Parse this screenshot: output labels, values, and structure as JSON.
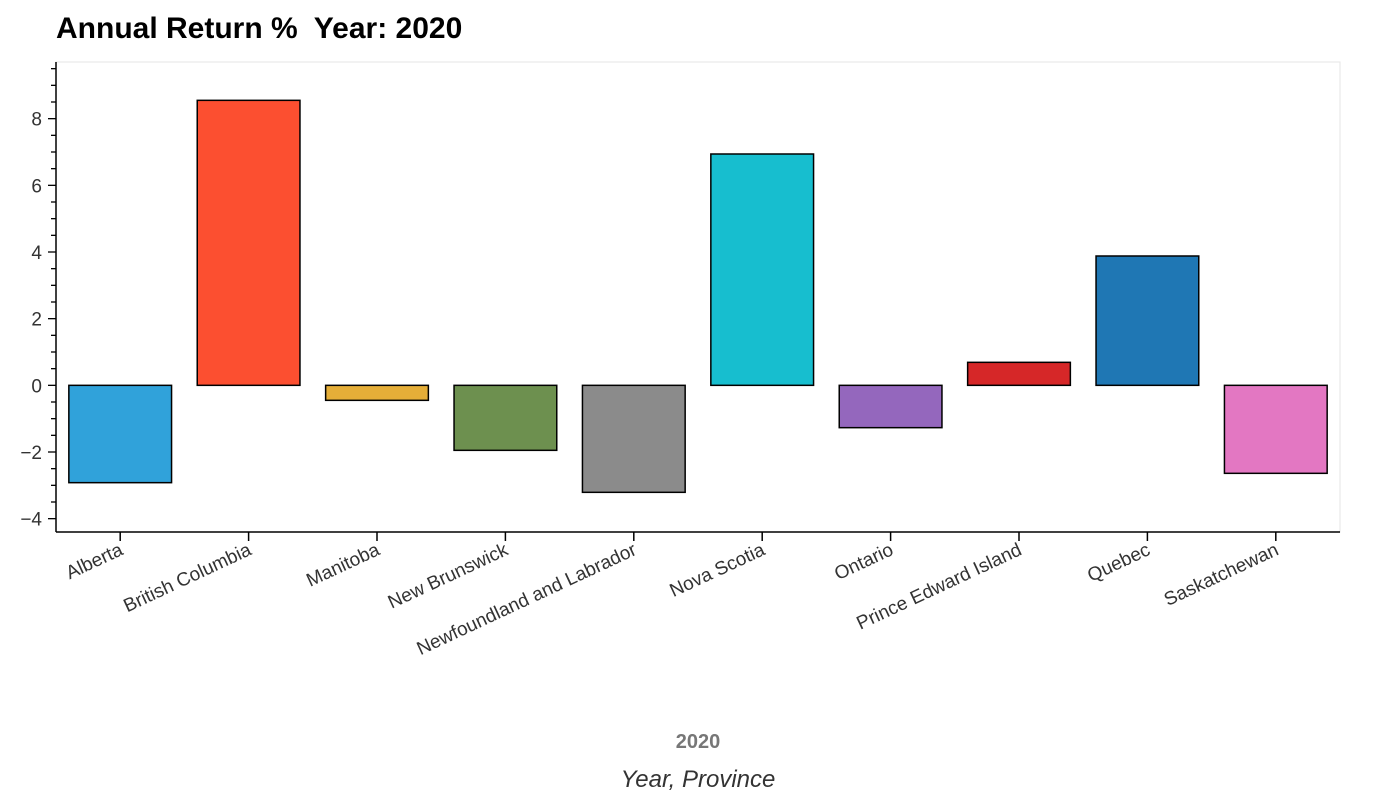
{
  "title": "Annual Return %  Year: 2020",
  "chart_data": {
    "type": "bar",
    "title": "Annual Return %  Year: 2020",
    "group_label": "2020",
    "xlabel": "Year, Province",
    "ylabel": "",
    "ylim": [
      -4.4,
      9.7
    ],
    "yticks": [
      8,
      6,
      4,
      2,
      0,
      -2,
      -4
    ],
    "ytick_labels": [
      "8",
      "6",
      "4",
      "2",
      "0",
      "−2",
      "−4"
    ],
    "grid": false,
    "categories": [
      "Alberta",
      "British Columbia",
      "Manitoba",
      "New Brunswick",
      "Newfoundland and Labrador",
      "Nova Scotia",
      "Ontario",
      "Prince Edward Island",
      "Quebec",
      "Saskatchewan"
    ],
    "values": [
      -2.92,
      8.55,
      -0.45,
      -1.95,
      -3.21,
      6.94,
      -1.27,
      0.69,
      3.88,
      -2.64
    ],
    "colors": [
      "#30a2da",
      "#fc4f30",
      "#e5ae38",
      "#6d904f",
      "#8b8b8b",
      "#17becf",
      "#9467bd",
      "#d62728",
      "#1f77b4",
      "#e377c2"
    ]
  }
}
